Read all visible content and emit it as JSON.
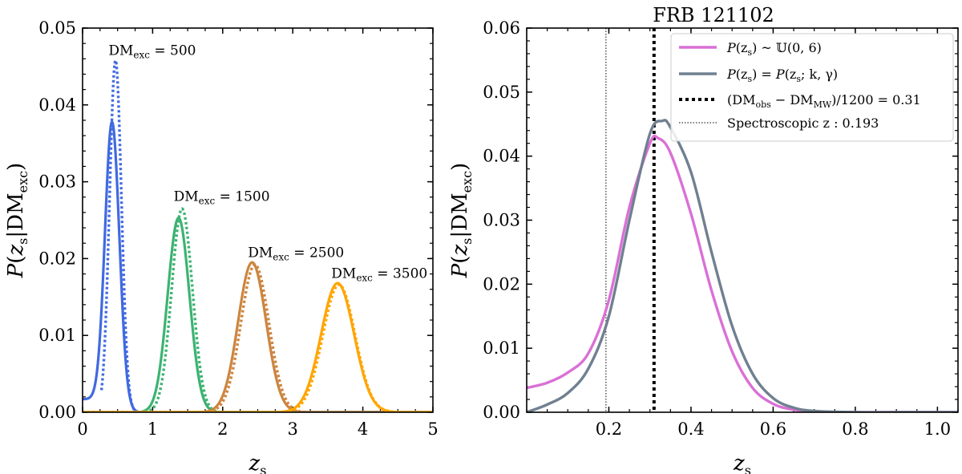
{
  "chart_data": [
    {
      "type": "line",
      "xlabel": "z_s",
      "ylabel": "P(z_s|DM_exc)",
      "xlim": [
        0,
        5
      ],
      "ylim": [
        0,
        0.05
      ],
      "xticks": [
        0,
        1,
        2,
        3,
        4,
        5
      ],
      "yticks": [
        0.0,
        0.01,
        0.02,
        0.03,
        0.04,
        0.05
      ],
      "xtick_labels": [
        "0",
        "1",
        "2",
        "3",
        "4",
        "5"
      ],
      "ytick_labels": [
        "0.00",
        "0.01",
        "0.02",
        "0.03",
        "0.04",
        "0.05"
      ],
      "series": [
        {
          "name": "DM_exc = 500 (solid)",
          "color": "#4169E1",
          "style": "solid",
          "mu": 0.42,
          "sigma": 0.105,
          "peak": 0.0378,
          "tail": "lognormal"
        },
        {
          "name": "DM_exc = 500 (dotted)",
          "color": "#4169E1",
          "style": "dotted",
          "mu": 0.47,
          "sigma": 0.085,
          "peak": 0.0458,
          "xrange": [
            0.27,
            0.9
          ]
        },
        {
          "name": "DM_exc = 1500 (solid)",
          "color": "#3CB371",
          "style": "solid",
          "mu": 1.37,
          "sigma": 0.155,
          "peak": 0.0253
        },
        {
          "name": "DM_exc = 1500 (dotted)",
          "color": "#3CB371",
          "style": "dotted",
          "mu": 1.42,
          "sigma": 0.148,
          "peak": 0.0265
        },
        {
          "name": "DM_exc = 2500 (solid)",
          "color": "#CD853F",
          "style": "solid",
          "mu": 2.42,
          "sigma": 0.2,
          "peak": 0.0195
        },
        {
          "name": "DM_exc = 2500 (dotted)",
          "color": "#CD853F",
          "style": "dotted",
          "mu": 2.46,
          "sigma": 0.2,
          "peak": 0.0192
        },
        {
          "name": "DM_exc = 3500 (solid)",
          "color": "#FFA500",
          "style": "solid",
          "mu": 3.64,
          "sigma": 0.235,
          "peak": 0.0168
        },
        {
          "name": "DM_exc = 3500 (dotted)",
          "color": "#FFA500",
          "style": "dotted",
          "mu": 3.66,
          "sigma": 0.23,
          "peak": 0.0166
        }
      ],
      "annotations": [
        {
          "text_main": "DM",
          "text_sub": "exc",
          "text_rest": " = 500",
          "x": 0.37,
          "y": 0.0465
        },
        {
          "text_main": "DM",
          "text_sub": "exc",
          "text_rest": " = 1500",
          "x": 1.3,
          "y": 0.0275
        },
        {
          "text_main": "DM",
          "text_sub": "exc",
          "text_rest": " = 2500",
          "x": 2.36,
          "y": 0.0202
        },
        {
          "text_main": "DM",
          "text_sub": "exc",
          "text_rest": " = 3500",
          "x": 3.55,
          "y": 0.0175
        }
      ]
    },
    {
      "type": "line",
      "title": "FRB 121102",
      "xlabel": "z_s",
      "ylabel": "P(z_s|DM_exc)",
      "xlim": [
        0,
        1.05
      ],
      "ylim": [
        0,
        0.06
      ],
      "xticks": [
        0.2,
        0.4,
        0.6,
        0.8,
        1.0
      ],
      "yticks": [
        0.0,
        0.01,
        0.02,
        0.03,
        0.04,
        0.05,
        0.06
      ],
      "xtick_labels": [
        "0.2",
        "0.4",
        "0.6",
        "0.8",
        "1.0"
      ],
      "ytick_labels": [
        "0.00",
        "0.01",
        "0.02",
        "0.03",
        "0.04",
        "0.05",
        "0.06"
      ],
      "series": [
        {
          "name": "P(z_s) ~ U(0,6)",
          "color": "#DA70D6",
          "style": "solid",
          "x": [
            0.0,
            0.05,
            0.1,
            0.15,
            0.2,
            0.25,
            0.3,
            0.32,
            0.35,
            0.4,
            0.45,
            0.5,
            0.55,
            0.6,
            0.65,
            0.7,
            0.8,
            0.9,
            1.05
          ],
          "y": [
            0.0038,
            0.0046,
            0.0062,
            0.0092,
            0.0175,
            0.032,
            0.042,
            0.0428,
            0.0405,
            0.031,
            0.019,
            0.0095,
            0.0038,
            0.0013,
            0.0004,
            0.0001,
            0.0,
            0.0,
            0.0
          ]
        },
        {
          "name": "P(z_s) = P(z_s; k, γ)",
          "color": "#708090",
          "style": "solid",
          "x": [
            0.0,
            0.05,
            0.1,
            0.15,
            0.2,
            0.25,
            0.3,
            0.33,
            0.35,
            0.4,
            0.45,
            0.5,
            0.55,
            0.6,
            0.65,
            0.7,
            0.8,
            0.9,
            1.05
          ],
          "y": [
            0.0,
            0.0012,
            0.003,
            0.0068,
            0.015,
            0.03,
            0.0435,
            0.0455,
            0.0445,
            0.0375,
            0.025,
            0.0135,
            0.006,
            0.0022,
            0.0007,
            0.0002,
            0.0,
            0.0,
            0.0
          ]
        }
      ],
      "vlines": [
        {
          "name": "(DM_obs − DM_MW)/1200 = 0.31",
          "x": 0.31,
          "color": "#000000",
          "style": "dotted-thick"
        },
        {
          "name": "Spectroscopic z: 0.193",
          "x": 0.193,
          "color": "#000000",
          "style": "dotted-thin"
        }
      ],
      "legend": {
        "location": "top-right",
        "entries": [
          "P(z_s) ~ U(0,6)",
          "P(z_s) = P(z_s; k, γ)",
          "(DM_obs − DM_MW)/1200 = 0.31",
          "Spectroscopic z : 0.193"
        ]
      }
    }
  ],
  "labels": {
    "xlabel_main": "z",
    "xlabel_sub": "s",
    "ylabel_P": "P",
    "ylabel_open": "(",
    "ylabel_z": "z",
    "ylabel_zsub": "s",
    "ylabel_bar": "|DM",
    "ylabel_sub": "exc",
    "ylabel_close": ")",
    "title": "FRB 121102",
    "legend1_a": "P",
    "legend1_b": "(z",
    "legend1_c": "s",
    "legend1_d": ") ~ 𝕌(0, 6)",
    "legend2_a": "P",
    "legend2_b": "(z",
    "legend2_c": "s",
    "legend2_d": ") = ",
    "legend2_e": "P",
    "legend2_f": "(z",
    "legend2_g": "s",
    "legend2_h": "; k, γ)",
    "legend3_a": "(DM",
    "legend3_b": "obs",
    "legend3_c": " − DM",
    "legend3_d": "MW",
    "legend3_e": ")/1200 = 0.31",
    "legend4": "Spectroscopic z :  0.193"
  }
}
